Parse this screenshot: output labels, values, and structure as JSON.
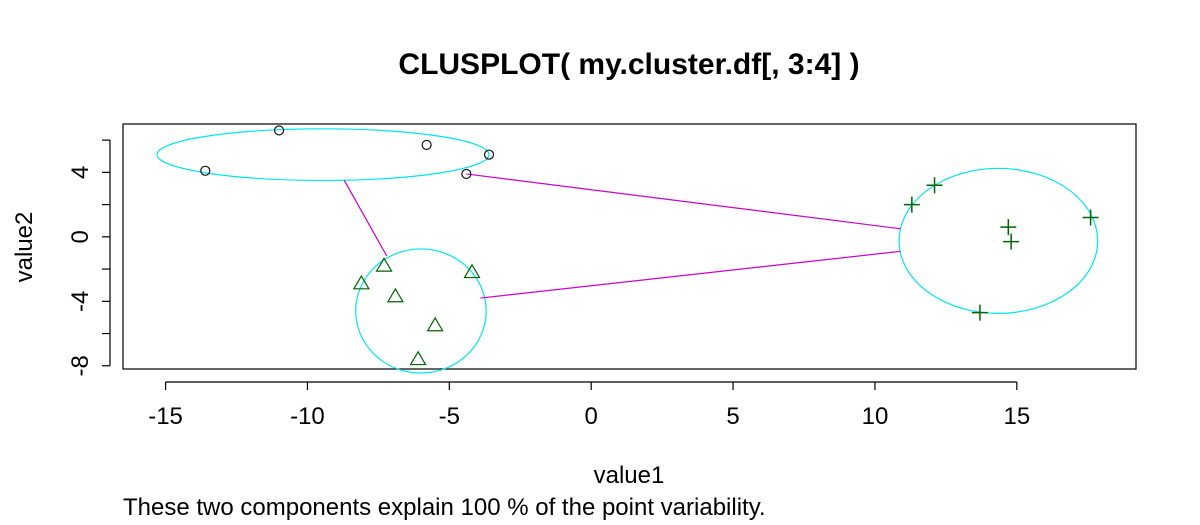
{
  "chart_data": {
    "type": "scatter",
    "title": "CLUSPLOT( my.cluster.df[, 3:4] )",
    "xlabel": "value1",
    "ylabel": "value2",
    "footnote": "These two components explain 100 % of the point variability.",
    "xlim": [
      -16.5,
      19.2
    ],
    "ylim": [
      -8.2,
      7.0
    ],
    "x_ticks": [
      -15,
      -10,
      -5,
      0,
      5,
      10,
      15
    ],
    "y_ticks": [
      -8,
      -6,
      -4,
      -2,
      0,
      2,
      4,
      6
    ],
    "y_tick_labels": [
      "-8",
      "",
      "-4",
      "",
      "0",
      "",
      "4",
      ""
    ],
    "grid": false,
    "colors": {
      "ellipse": "#00e5ee",
      "link": "#cc00cc",
      "points": "#006400",
      "circles": "#000000",
      "triangles": "#006400"
    },
    "clusters": [
      {
        "marker": "circle",
        "points": [
          [
            -11.0,
            6.6
          ],
          [
            -13.6,
            4.1
          ],
          [
            -5.8,
            5.7
          ],
          [
            -3.6,
            5.1
          ],
          [
            -4.4,
            3.9
          ]
        ],
        "ellipse": {
          "cx": -9.45,
          "cy": 5.1,
          "rx": 5.85,
          "ry": 1.6
        }
      },
      {
        "marker": "triangle",
        "points": [
          [
            -7.3,
            -1.8
          ],
          [
            -8.1,
            -2.9
          ],
          [
            -6.9,
            -3.7
          ],
          [
            -4.2,
            -2.2
          ],
          [
            -5.5,
            -5.5
          ],
          [
            -6.1,
            -7.6
          ]
        ],
        "ellipse": {
          "cx": -6.0,
          "cy": -4.6,
          "rx": 2.3,
          "ry": 3.85
        }
      },
      {
        "marker": "plus",
        "points": [
          [
            11.3,
            2.0
          ],
          [
            12.1,
            3.2
          ],
          [
            14.7,
            0.6
          ],
          [
            14.8,
            -0.3
          ],
          [
            17.6,
            1.2
          ],
          [
            13.7,
            -4.7
          ]
        ],
        "ellipse": {
          "cx": 14.35,
          "cy": -0.25,
          "rx": 3.5,
          "ry": 4.5
        }
      }
    ],
    "links": [
      [
        [
          -8.7,
          3.5
        ],
        [
          -7.2,
          -1.2
        ]
      ],
      [
        [
          -4.4,
          3.9
        ],
        [
          10.9,
          0.5
        ]
      ],
      [
        [
          -3.9,
          -3.8
        ],
        [
          10.9,
          -0.9
        ]
      ]
    ]
  }
}
